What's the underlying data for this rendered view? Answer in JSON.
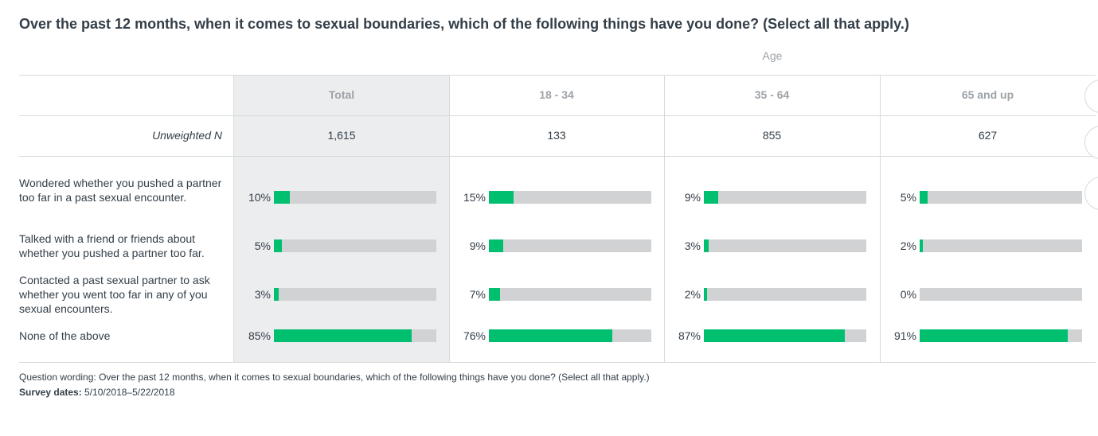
{
  "title": "Over the past 12 months, when it comes to sexual boundaries, which of the following things have you done? (Select all that apply.)",
  "group_label": "Age",
  "n_label": "Unweighted N",
  "columns": [
    {
      "label": "Total",
      "n": "1,615"
    },
    {
      "label": "18 - 34",
      "n": "133"
    },
    {
      "label": "35 - 64",
      "n": "855"
    },
    {
      "label": "65 and up",
      "n": "627"
    }
  ],
  "rows": [
    {
      "label": "Wondered whether you pushed a partner too far in a past sexual encounter.",
      "cells": [
        {
          "text": "10%",
          "value": 10
        },
        {
          "text": "15%",
          "value": 15
        },
        {
          "text": "9%",
          "value": 9
        },
        {
          "text": "5%",
          "value": 5
        }
      ]
    },
    {
      "label": "Talked with a friend or friends about whether you pushed a partner too far.",
      "cells": [
        {
          "text": "5%",
          "value": 5
        },
        {
          "text": "9%",
          "value": 9
        },
        {
          "text": "3%",
          "value": 3
        },
        {
          "text": "2%",
          "value": 2
        }
      ]
    },
    {
      "label": "Contacted a past sexual partner to ask whether you went too far in any of you sexual encounters.",
      "cells": [
        {
          "text": "3%",
          "value": 3
        },
        {
          "text": "7%",
          "value": 7
        },
        {
          "text": "2%",
          "value": 2
        },
        {
          "text": "0%",
          "value": 0
        }
      ]
    },
    {
      "label": "None of the above",
      "cells": [
        {
          "text": "85%",
          "value": 85
        },
        {
          "text": "76%",
          "value": 76
        },
        {
          "text": "87%",
          "value": 87
        },
        {
          "text": "91%",
          "value": 91
        }
      ]
    }
  ],
  "footer": {
    "wording_prefix": "Question wording: ",
    "wording": "Over the past 12 months, when it comes to sexual boundaries, which of the following things have you done? (Select all that apply.)",
    "dates_label": "Survey dates:",
    "dates": "5/10/2018–5/22/2018"
  },
  "chart_data": {
    "type": "bar",
    "title": "Over the past 12 months, when it comes to sexual boundaries, which of the following things have you done? (Select all that apply.)",
    "categories": [
      "Wondered whether you pushed a partner too far in a past sexual encounter.",
      "Talked with a friend or friends about whether you pushed a partner too far.",
      "Contacted a past sexual partner to ask whether you went too far in any of you sexual encounters.",
      "None of the above"
    ],
    "series": [
      {
        "name": "Total",
        "values": [
          10,
          5,
          3,
          85
        ]
      },
      {
        "name": "18 - 34",
        "values": [
          15,
          9,
          7,
          76
        ]
      },
      {
        "name": "35 - 64",
        "values": [
          9,
          3,
          2,
          87
        ]
      },
      {
        "name": "65 and up",
        "values": [
          5,
          2,
          0,
          91
        ]
      }
    ],
    "xlim": [
      0,
      100
    ],
    "colors": {
      "fill": "#00bf6f",
      "track": "#d0d2d4",
      "total_bg": "#ecedee"
    }
  }
}
